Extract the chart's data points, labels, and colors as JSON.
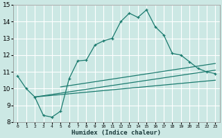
{
  "xlabel": "Humidex (Indice chaleur)",
  "background_color": "#cce8e4",
  "grid_color": "#ffffff",
  "line_color": "#1a7a6e",
  "xlim": [
    -0.5,
    23.5
  ],
  "ylim": [
    8,
    15
  ],
  "xticks": [
    0,
    1,
    2,
    3,
    4,
    5,
    6,
    7,
    8,
    9,
    10,
    11,
    12,
    13,
    14,
    15,
    16,
    17,
    18,
    19,
    20,
    21,
    22,
    23
  ],
  "yticks": [
    8,
    9,
    10,
    11,
    12,
    13,
    14,
    15
  ],
  "curve1_x": [
    0,
    1,
    2,
    3,
    4,
    5,
    6,
    7,
    8,
    9,
    10,
    11,
    12,
    13,
    14,
    15,
    16,
    17,
    18,
    19,
    20,
    21,
    22,
    23
  ],
  "curve1_y": [
    10.75,
    10.0,
    9.5,
    8.4,
    8.3,
    8.65,
    10.6,
    11.65,
    11.7,
    12.6,
    12.85,
    13.0,
    14.0,
    14.5,
    14.25,
    14.7,
    13.7,
    13.2,
    12.1,
    12.0,
    11.6,
    11.2,
    11.0,
    10.9
  ],
  "curve2_x": [
    2,
    23
  ],
  "curve2_y": [
    9.5,
    11.1
  ],
  "curve3_x": [
    2,
    23
  ],
  "curve3_y": [
    9.5,
    10.5
  ],
  "curve4_x": [
    5,
    23
  ],
  "curve4_y": [
    10.1,
    11.5
  ]
}
